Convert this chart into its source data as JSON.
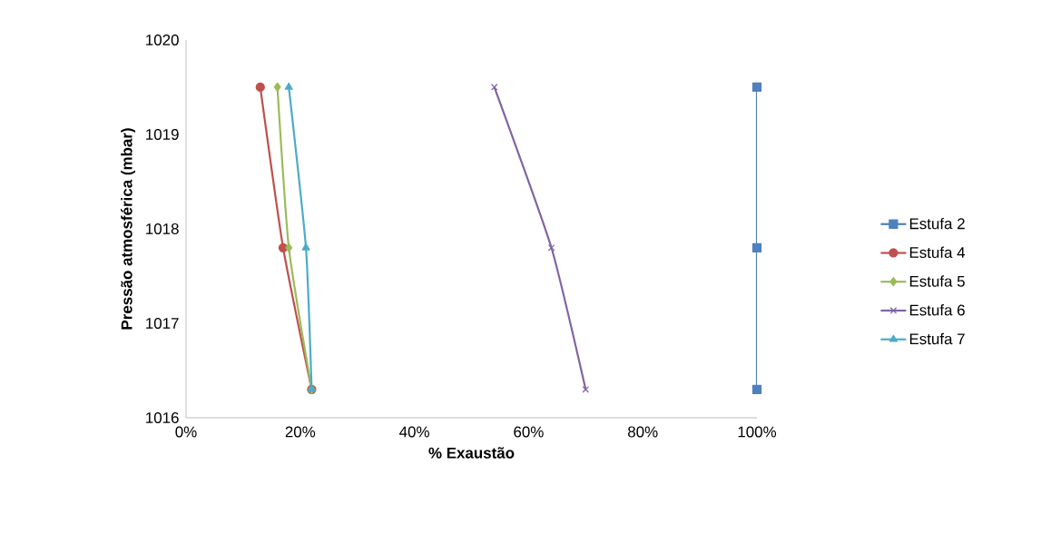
{
  "chart_data": {
    "type": "line",
    "xlabel": "% Exaustão",
    "ylabel": "Pressão atmosférica (mbar)",
    "xlim": [
      0,
      100
    ],
    "ylim": [
      1016,
      1020
    ],
    "xticks": [
      {
        "value": 0,
        "label": "0%"
      },
      {
        "value": 20,
        "label": "20%"
      },
      {
        "value": 40,
        "label": "40%"
      },
      {
        "value": 60,
        "label": "60%"
      },
      {
        "value": 80,
        "label": "80%"
      },
      {
        "value": 100,
        "label": "100%"
      }
    ],
    "yticks": [
      1016,
      1017,
      1018,
      1019,
      1020
    ],
    "grid": false,
    "legend": "right",
    "series": [
      {
        "name": "Estufa 2",
        "color": "#4f81bd",
        "marker": "square",
        "x": [
          100,
          100,
          100
        ],
        "values": [
          1019.5,
          1017.8,
          1016.3
        ]
      },
      {
        "name": "Estufa 4",
        "color": "#c0504d",
        "marker": "circle",
        "x": [
          13,
          17,
          22
        ],
        "values": [
          1019.5,
          1017.8,
          1016.3
        ]
      },
      {
        "name": "Estufa 5",
        "color": "#9bbb59",
        "marker": "diamond",
        "x": [
          16,
          18,
          22
        ],
        "values": [
          1019.5,
          1017.8,
          1016.3
        ]
      },
      {
        "name": "Estufa 6",
        "color": "#8064a2",
        "marker": "cross",
        "x": [
          54,
          64,
          70
        ],
        "values": [
          1019.5,
          1017.8,
          1016.3
        ]
      },
      {
        "name": "Estufa 7",
        "color": "#4bacc6",
        "marker": "triangle",
        "x": [
          18,
          21,
          22
        ],
        "values": [
          1019.5,
          1017.8,
          1016.3
        ]
      }
    ]
  }
}
